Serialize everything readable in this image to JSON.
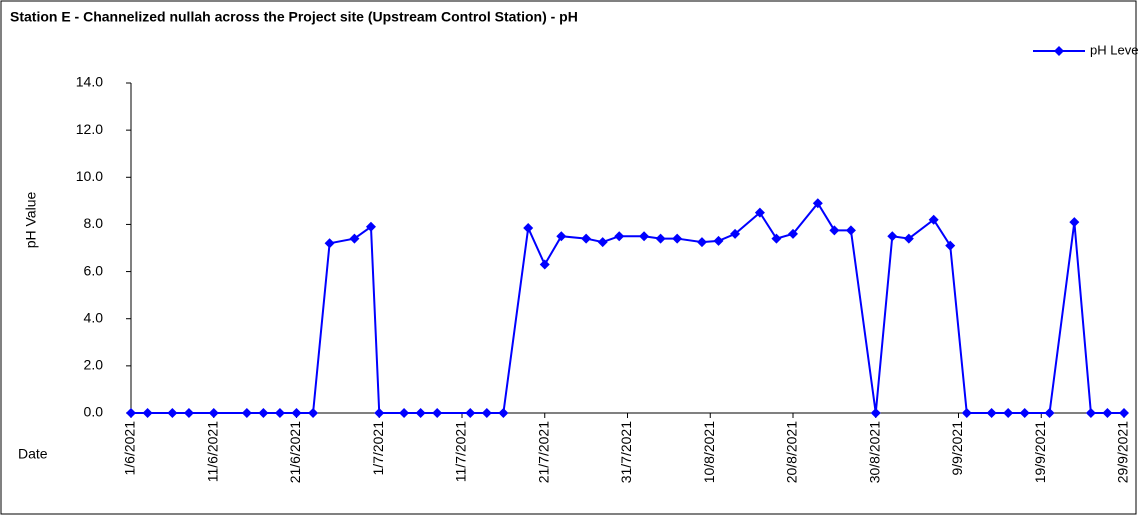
{
  "chart_data": {
    "type": "line",
    "title": "Station E - Channelized nullah across the Project site (Upstream Control Station) - pH",
    "x_label": "Date",
    "y_label": "pH Value",
    "x": [
      "1/6/2021",
      "3/6/2021",
      "6/6/2021",
      "8/6/2021",
      "11/6/2021",
      "15/6/2021",
      "17/6/2021",
      "19/6/2021",
      "21/6/2021",
      "23/6/2021",
      "25/6/2021",
      "28/6/2021",
      "30/6/2021",
      "1/7/2021",
      "4/7/2021",
      "6/7/2021",
      "8/7/2021",
      "12/7/2021",
      "14/7/2021",
      "16/7/2021",
      "19/7/2021",
      "21/7/2021",
      "23/7/2021",
      "26/7/2021",
      "28/7/2021",
      "30/7/2021",
      "2/8/2021",
      "4/8/2021",
      "6/8/2021",
      "9/8/2021",
      "11/8/2021",
      "13/8/2021",
      "16/8/2021",
      "18/8/2021",
      "20/8/2021",
      "23/8/2021",
      "25/8/2021",
      "27/8/2021",
      "30/8/2021",
      "1/9/2021",
      "3/9/2021",
      "6/9/2021",
      "8/9/2021",
      "10/9/2021",
      "13/9/2021",
      "15/9/2021",
      "17/9/2021",
      "20/9/2021",
      "23/9/2021",
      "25/9/2021",
      "27/9/2021",
      "29/9/2021"
    ],
    "series": [
      {
        "name": "pH Level",
        "color": "#0000ff",
        "values": [
          0,
          0,
          0,
          0,
          0,
          0,
          0,
          0,
          0,
          0,
          7.2,
          7.4,
          7.9,
          0,
          0,
          0,
          0,
          0,
          0,
          0,
          7.85,
          6.3,
          7.5,
          7.4,
          7.25,
          7.5,
          7.5,
          7.4,
          7.4,
          7.25,
          7.3,
          7.6,
          8.5,
          7.4,
          7.6,
          8.9,
          7.75,
          7.75,
          0,
          7.5,
          7.4,
          8.2,
          7.1,
          0,
          0,
          0,
          0,
          0,
          8.1,
          0,
          0,
          0
        ]
      }
    ],
    "xlim": [
      "1/6/2021",
      "29/9/2021"
    ],
    "xticks": [
      "1/6/2021",
      "11/6/2021",
      "21/6/2021",
      "1/7/2021",
      "11/7/2021",
      "21/7/2021",
      "31/7/2021",
      "10/8/2021",
      "20/8/2021",
      "30/8/2021",
      "9/9/2021",
      "19/9/2021",
      "29/9/2021"
    ],
    "ylim": [
      0,
      14
    ],
    "yticks": [
      {
        "value": 0,
        "label": "0.0"
      },
      {
        "value": 2,
        "label": "2.0"
      },
      {
        "value": 4,
        "label": "4.0"
      },
      {
        "value": 6,
        "label": "6.0"
      },
      {
        "value": 8,
        "label": "8.0"
      },
      {
        "value": 10,
        "label": "10.0"
      },
      {
        "value": 12,
        "label": "12.0"
      },
      {
        "value": 14,
        "label": "14.0"
      }
    ],
    "grid": false,
    "legend": "top-right"
  }
}
